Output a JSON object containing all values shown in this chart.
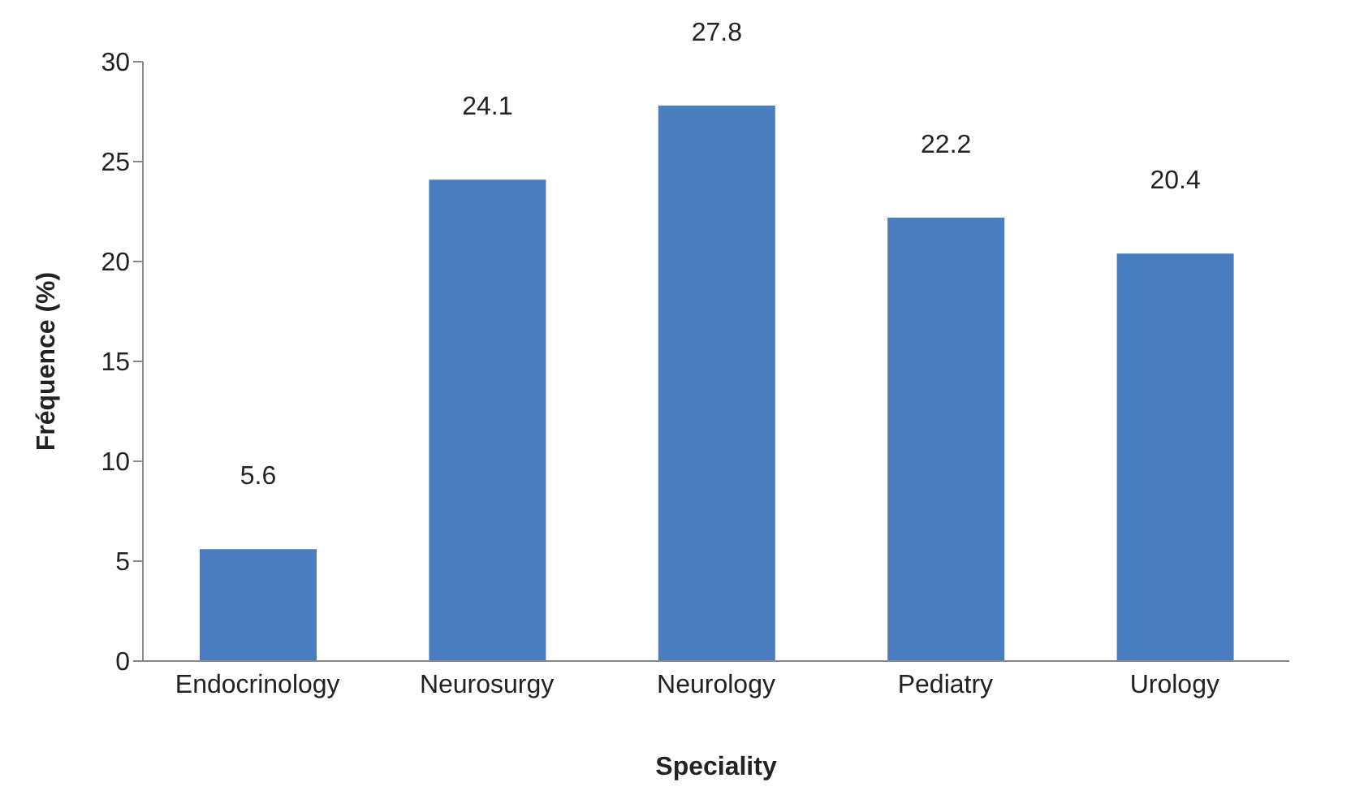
{
  "chart_data": {
    "type": "bar",
    "xlabel": "Speciality",
    "ylabel": "Fréquence (%)",
    "categories": [
      "Endocrinology",
      "Neurosurgy",
      "Neurology",
      "Pediatry",
      "Urology"
    ],
    "values": [
      5.6,
      24.1,
      27.8,
      22.2,
      20.4
    ],
    "color": "#4a7cc0",
    "ylim": [
      0,
      30
    ],
    "yticks": [
      0,
      5,
      10,
      15,
      20,
      25,
      30
    ],
    "grid": false,
    "data_labels": true
  }
}
